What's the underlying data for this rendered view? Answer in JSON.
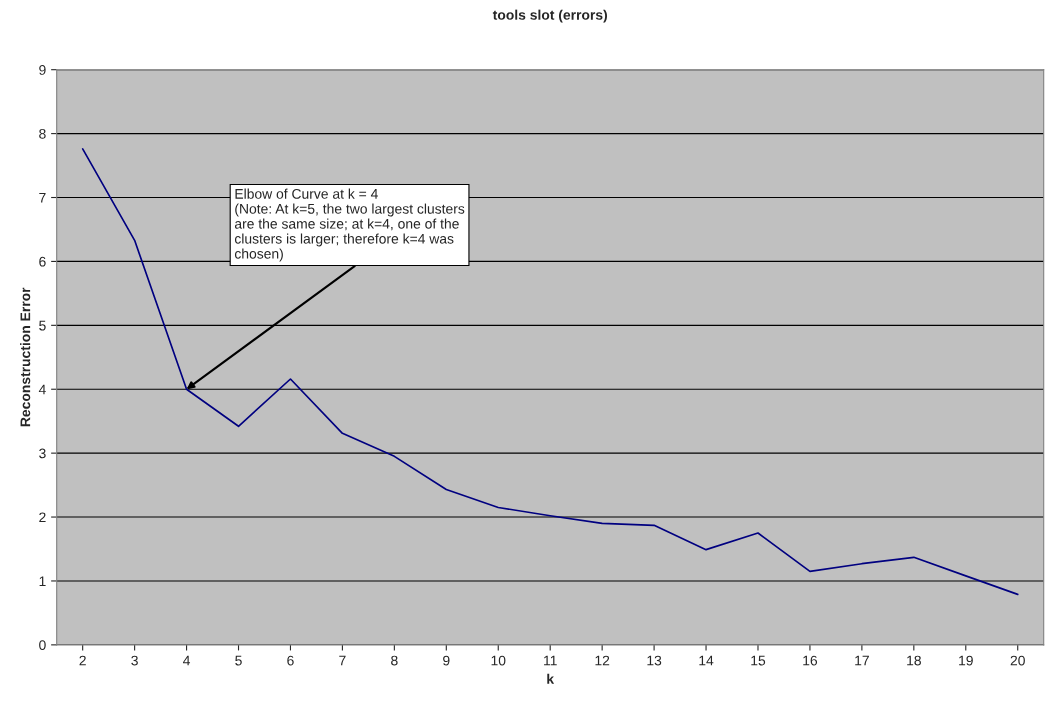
{
  "chart_data": {
    "type": "line",
    "title": "tools slot (errors)",
    "xlabel": "k",
    "ylabel": "Reconstruction Error",
    "categories": [
      "2",
      "3",
      "4",
      "5",
      "6",
      "7",
      "8",
      "9",
      "10",
      "11",
      "12",
      "13",
      "14",
      "15",
      "16",
      "17",
      "18",
      "19",
      "20"
    ],
    "series": [
      {
        "color": "#000080",
        "values": [
          7.76,
          6.33,
          4.0,
          3.42,
          4.16,
          3.31,
          2.95,
          2.43,
          2.15,
          2.02,
          1.9,
          1.87,
          1.49,
          1.75,
          1.15,
          1.27,
          1.37,
          1.08,
          0.79
        ]
      }
    ],
    "ylim": [
      0,
      9
    ],
    "yticks": [
      0,
      1,
      2,
      3,
      4,
      5,
      6,
      7,
      8,
      9
    ],
    "grid": "y",
    "marker": "none",
    "line_style": "solid",
    "annotations": [
      {
        "text": "Elbow of Curve at k = 4\n(Note: At k=5, the two largest clusters\nare the same size; at k=4, one of the\nclusters is larger; therefore k=4 was\nchosen)",
        "x": "4",
        "y": 4
      }
    ]
  }
}
